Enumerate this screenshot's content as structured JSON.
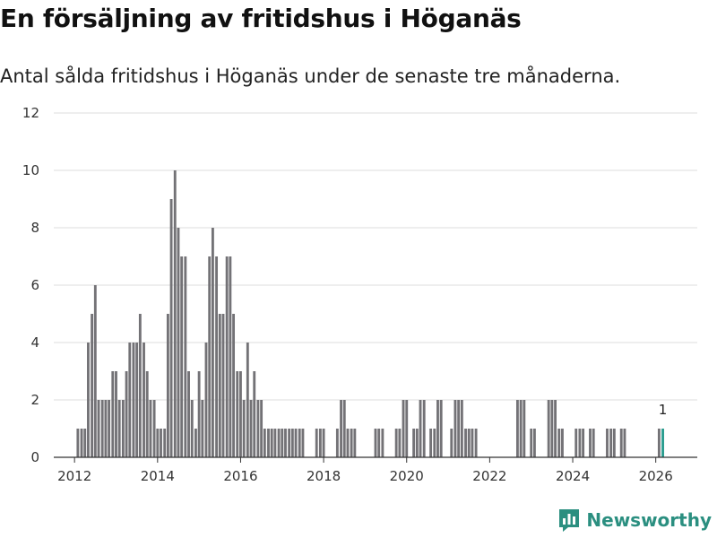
{
  "header": {
    "title": "En försäljning av fritidshus i Höganäs",
    "subtitle": "Antal sålda fritidshus i Höganäs under de senaste tre månaderna."
  },
  "brand": {
    "name": "Newsworthy",
    "color": "#2b8f80",
    "icon": "newsworthy-chart-icon"
  },
  "colors": {
    "bar": "#737276",
    "highlight": "#2a9d8f",
    "grid": "#dddddd",
    "axis": "#333333"
  },
  "chart_data": {
    "type": "bar",
    "title": "En försäljning av fritidshus i Höganäs",
    "xlabel": "",
    "ylabel": "",
    "xlim": [
      2011.5,
      2027
    ],
    "ylim": [
      0,
      12
    ],
    "yticks": [
      0,
      2,
      4,
      6,
      8,
      10,
      12
    ],
    "xticks": [
      2012,
      2014,
      2016,
      2018,
      2020,
      2022,
      2024,
      2026
    ],
    "bar_width": 0.0833,
    "highlight_label": "1",
    "x": [
      2012.08,
      2012.17,
      2012.25,
      2012.33,
      2012.42,
      2012.5,
      2012.58,
      2012.67,
      2012.75,
      2012.83,
      2012.92,
      2013.0,
      2013.08,
      2013.17,
      2013.25,
      2013.33,
      2013.42,
      2013.5,
      2013.58,
      2013.67,
      2013.75,
      2013.83,
      2013.92,
      2014.0,
      2014.08,
      2014.17,
      2014.25,
      2014.33,
      2014.42,
      2014.5,
      2014.58,
      2014.67,
      2014.75,
      2014.83,
      2014.92,
      2015.0,
      2015.08,
      2015.17,
      2015.25,
      2015.33,
      2015.42,
      2015.5,
      2015.58,
      2015.67,
      2015.75,
      2015.83,
      2015.92,
      2016.0,
      2016.08,
      2016.17,
      2016.25,
      2016.33,
      2016.42,
      2016.5,
      2016.58,
      2016.67,
      2016.75,
      2016.83,
      2016.92,
      2017.0,
      2017.08,
      2017.17,
      2017.25,
      2017.33,
      2017.42,
      2017.5,
      2017.83,
      2017.92,
      2018.0,
      2018.33,
      2018.42,
      2018.5,
      2018.58,
      2018.67,
      2018.75,
      2019.25,
      2019.33,
      2019.42,
      2019.75,
      2019.83,
      2019.92,
      2020.0,
      2020.17,
      2020.25,
      2020.33,
      2020.42,
      2020.58,
      2020.67,
      2020.75,
      2020.83,
      2021.08,
      2021.17,
      2021.25,
      2021.33,
      2021.42,
      2021.5,
      2021.58,
      2021.67,
      2022.67,
      2022.75,
      2022.83,
      2023.0,
      2023.08,
      2023.42,
      2023.5,
      2023.58,
      2023.67,
      2023.75,
      2024.08,
      2024.17,
      2024.25,
      2024.42,
      2024.5,
      2024.83,
      2024.92,
      2025.0,
      2025.17,
      2025.25,
      2026.08,
      2026.17
    ],
    "values": [
      1,
      1,
      1,
      4,
      5,
      6,
      2,
      2,
      2,
      2,
      3,
      3,
      2,
      2,
      3,
      4,
      4,
      4,
      5,
      4,
      3,
      2,
      2,
      1,
      1,
      1,
      5,
      9,
      10,
      8,
      7,
      7,
      3,
      2,
      1,
      3,
      2,
      4,
      7,
      8,
      7,
      5,
      5,
      7,
      7,
      5,
      3,
      3,
      2,
      4,
      2,
      3,
      2,
      2,
      1,
      1,
      1,
      1,
      1,
      1,
      1,
      1,
      1,
      1,
      1,
      1,
      1,
      1,
      1,
      1,
      2,
      2,
      1,
      1,
      1,
      1,
      1,
      1,
      1,
      1,
      2,
      2,
      1,
      1,
      2,
      2,
      1,
      1,
      2,
      2,
      1,
      2,
      2,
      2,
      1,
      1,
      1,
      1,
      2,
      2,
      2,
      1,
      1,
      2,
      2,
      2,
      1,
      1,
      1,
      1,
      1,
      1,
      1,
      1,
      1,
      1,
      1,
      1,
      1,
      1
    ],
    "highlight_index": 119
  }
}
